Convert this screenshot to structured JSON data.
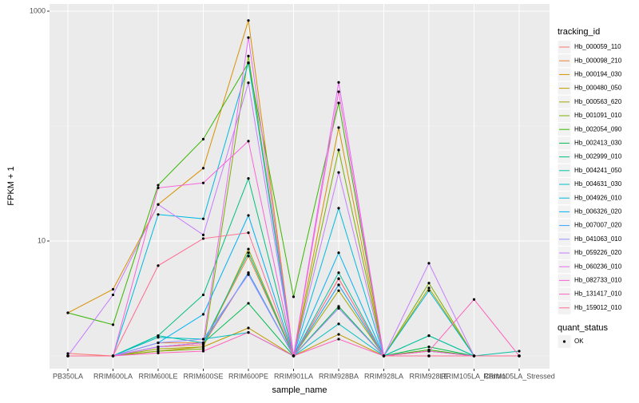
{
  "chart_data": {
    "type": "line",
    "x_label": "sample_name",
    "y_label": "FPKM + 1",
    "categories": [
      "PB350LA",
      "RRIM600LA",
      "RRIM600LE",
      "RRIM600SE",
      "RRIM600PE",
      "RRIM901LA",
      "RRIM928BA",
      "RRIM928LA",
      "RRIM928LE",
      "RRIM105LA_Control",
      "RRIM105LA_Stressed"
    ],
    "ylim": [
      0.774,
      1155
    ],
    "yticks": [
      10,
      1000
    ],
    "log_scale": true,
    "grid": true,
    "legend_title": "tracking_id",
    "legend_position": "right",
    "point_color": "#000000",
    "point_legend": {
      "title": "quant_status",
      "labels": [
        "OK"
      ]
    },
    "series": [
      {
        "name": "Hb_000059_110",
        "color": "#F8766D",
        "values": [
          1.05,
          1,
          1.2,
          1.25,
          5.3,
          1,
          2.6,
          1,
          1,
          1,
          1
        ]
      },
      {
        "name": "Hb_000098_210",
        "color": "#EA8331",
        "values": [
          1,
          1,
          1.3,
          1.3,
          7.4,
          1,
          4.7,
          1,
          1,
          1,
          1
        ]
      },
      {
        "name": "Hb_000194_030",
        "color": "#D89000",
        "values": [
          2.37,
          3.8,
          20.8,
          43,
          830,
          1,
          97,
          1,
          1.1,
          1,
          1
        ]
      },
      {
        "name": "Hb_000480_050",
        "color": "#C09B00",
        "values": [
          1,
          1,
          1.1,
          1.2,
          1.75,
          1,
          1.54,
          1,
          1,
          1,
          1
        ]
      },
      {
        "name": "Hb_000563_620",
        "color": "#A3A500",
        "values": [
          1,
          1,
          1.15,
          1.2,
          8.5,
          1,
          3.7,
          1,
          3.9,
          1,
          1
        ]
      },
      {
        "name": "Hb_001091_010",
        "color": "#7CAE00",
        "values": [
          1,
          1,
          1.1,
          1.15,
          407,
          1,
          62,
          1,
          4.3,
          1,
          1
        ]
      },
      {
        "name": "Hb_002054_090",
        "color": "#39B600",
        "values": [
          2.37,
          1.87,
          30.6,
          77,
          355,
          3.27,
          159,
          1,
          1.13,
          1,
          1
        ]
      },
      {
        "name": "Hb_002413_030",
        "color": "#00BB4E",
        "values": [
          1,
          1,
          1.2,
          1.3,
          2.87,
          1,
          2.7,
          1,
          1.2,
          1,
          1
        ]
      },
      {
        "name": "Hb_002999_010",
        "color": "#00BF7D",
        "values": [
          1,
          1,
          1.5,
          3.4,
          35,
          1,
          4.15,
          1,
          1.5,
          1,
          1
        ]
      },
      {
        "name": "Hb_004241_050",
        "color": "#00C1A3",
        "values": [
          1,
          1,
          1.5,
          1.3,
          7.9,
          1,
          5.3,
          1,
          1.5,
          1,
          1.1
        ]
      },
      {
        "name": "Hb_004631_030",
        "color": "#00BFC4",
        "values": [
          1,
          1,
          1.45,
          1.4,
          1.6,
          1,
          1.9,
          1,
          1.1,
          1,
          1
        ]
      },
      {
        "name": "Hb_004926_010",
        "color": "#00BAE0",
        "values": [
          1,
          1,
          17,
          15.6,
          355,
          1,
          19.3,
          1,
          3.7,
          1,
          1
        ]
      },
      {
        "name": "Hb_006326_020",
        "color": "#00B0F6",
        "values": [
          1,
          1,
          1.3,
          2.3,
          16.7,
          1,
          7.9,
          1,
          1,
          1,
          1
        ]
      },
      {
        "name": "Hb_007007_020",
        "color": "#35A2FF",
        "values": [
          1,
          1,
          1.2,
          1.3,
          5.3,
          1,
          4.15,
          1,
          1,
          1,
          1
        ]
      },
      {
        "name": "Hb_041063_010",
        "color": "#9590FF",
        "values": [
          1,
          1,
          1.3,
          1.4,
          5.1,
          1,
          2.6,
          1,
          1,
          1,
          1
        ]
      },
      {
        "name": "Hb_059226_020",
        "color": "#C77CFF",
        "values": [
          1,
          3.4,
          20.8,
          11.3,
          238,
          1,
          39.5,
          1,
          6.4,
          1,
          1
        ]
      },
      {
        "name": "Hb_060236_010",
        "color": "#E76BF3",
        "values": [
          1,
          1,
          1.2,
          1.3,
          589,
          1,
          240,
          1,
          1,
          1,
          1
        ]
      },
      {
        "name": "Hb_082733_010",
        "color": "#FA62DB",
        "values": [
          1,
          1,
          29,
          32,
          74,
          1,
          199,
          1,
          1.1,
          1,
          1
        ]
      },
      {
        "name": "Hb_131417_010",
        "color": "#FF62BC",
        "values": [
          1,
          1,
          1.06,
          1.1,
          1.6,
          1,
          1.4,
          1,
          1.1,
          3.1,
          1
        ]
      },
      {
        "name": "Hb_159012_010",
        "color": "#FF6C91",
        "values": [
          1,
          1,
          6.1,
          10.5,
          11.8,
          1,
          4.7,
          1,
          1,
          1,
          1
        ]
      }
    ]
  }
}
